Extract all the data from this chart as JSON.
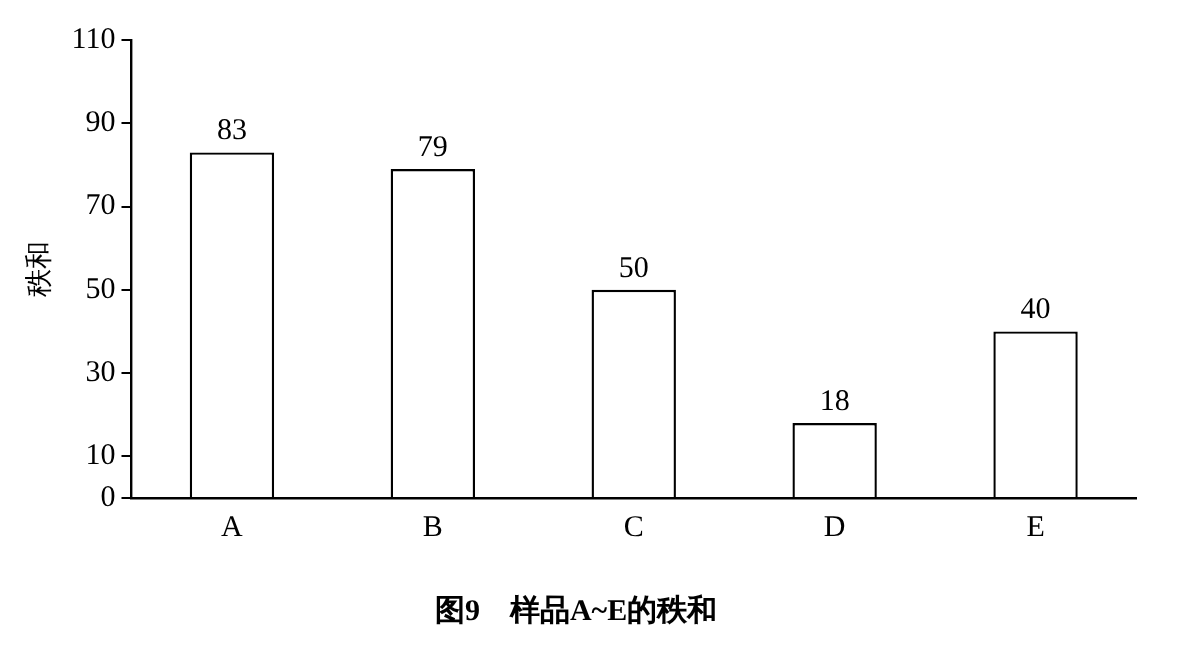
{
  "chart_data": {
    "type": "bar",
    "title": "图9　样品A~E的秩和",
    "ylabel": "秩和",
    "categories": [
      "A",
      "B",
      "C",
      "D",
      "E"
    ],
    "values": [
      83,
      79,
      50,
      18,
      40
    ],
    "color": "#ffffff",
    "ylim": [
      0,
      110
    ],
    "yticks": [
      0,
      10,
      30,
      50,
      70,
      90,
      110
    ],
    "grid": false,
    "legend": false,
    "data_labels": true
  }
}
